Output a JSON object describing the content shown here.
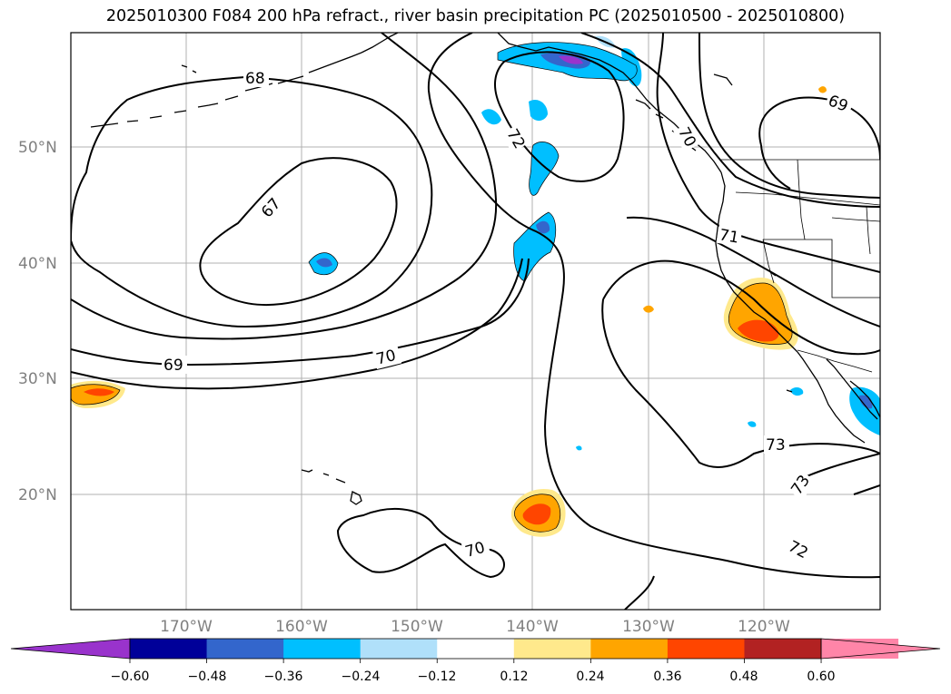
{
  "title": "2025010300 F084 200 hPa refract., river basin precipitation PC (2025010500 - 2025010800)",
  "lat_labels": [
    "50°N",
    "40°N",
    "30°N",
    "20°N"
  ],
  "lon_labels": [
    "170°W",
    "160°W",
    "150°W",
    "140°W",
    "130°W",
    "120°W"
  ],
  "contour_labels": [
    "68",
    "67",
    "72",
    "69",
    "70",
    "71",
    "70",
    "73",
    "73",
    "72",
    "70",
    "69"
  ],
  "colorbar": {
    "ticks": [
      "−0.60",
      "−0.48",
      "−0.36",
      "−0.24",
      "−0.12",
      "0.12",
      "0.24",
      "0.36",
      "0.48",
      "0.60"
    ],
    "colors": [
      "#9933cc",
      "#000099",
      "#3366cc",
      "#00bfff",
      "#b0e0fa",
      "#ffffff",
      "#ffe98c",
      "#ffa500",
      "#ff4500",
      "#b22222",
      "#ff85a8",
      "#ff85a8"
    ]
  },
  "colors": {
    "grid": "#b0b0b0",
    "tick_label": "#808080",
    "contour": "#000000"
  }
}
